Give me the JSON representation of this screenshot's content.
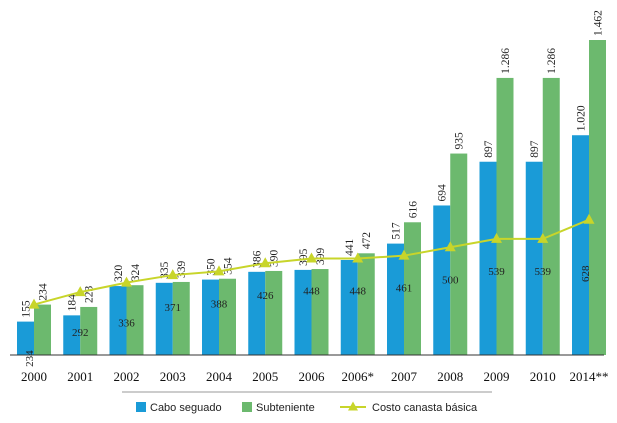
{
  "chart_data": {
    "type": "bar",
    "title": "",
    "xlabel": "",
    "ylabel": "",
    "ylim": [
      0,
      1500
    ],
    "grid": false,
    "legend_position": "bottom",
    "categories": [
      "2000",
      "2001",
      "2002",
      "2003",
      "2004",
      "2005",
      "2006",
      "2006*",
      "2007",
      "2008",
      "2009",
      "2010",
      "2014**"
    ],
    "series": [
      {
        "name": "Cabo seguado",
        "kind": "bar",
        "color": "#1a9bd7",
        "values": [
          155,
          184,
          320,
          335,
          350,
          386,
          395,
          441,
          517,
          694,
          897,
          897,
          1020
        ],
        "labels": [
          "155",
          "184",
          "320",
          "335",
          "350",
          "386",
          "395",
          "441",
          "517",
          "694",
          "897",
          "897",
          "1.020"
        ]
      },
      {
        "name": "Subteniente",
        "kind": "bar",
        "color": "#6cb96e",
        "values": [
          234,
          223,
          324,
          339,
          354,
          390,
          399,
          472,
          616,
          935,
          1286,
          1286,
          1462
        ],
        "labels": [
          "234",
          "223",
          "324",
          "339",
          "354",
          "390",
          "399",
          "472",
          "616",
          "935",
          "1.286",
          "1.286",
          "1.462"
        ]
      },
      {
        "name": "Costo canasta básica",
        "kind": "line",
        "color": "#c8d52a",
        "values": [
          234,
          292,
          336,
          371,
          388,
          426,
          448,
          448,
          461,
          500,
          539,
          539,
          628
        ],
        "labels": [
          "234",
          "292",
          "336",
          "371",
          "388",
          "426",
          "448",
          "448",
          "461",
          "500",
          "539",
          "539",
          "628"
        ]
      }
    ]
  }
}
